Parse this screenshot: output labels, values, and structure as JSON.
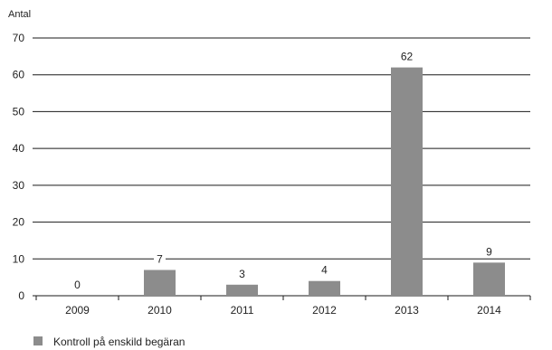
{
  "chart_data": {
    "type": "bar",
    "title": "",
    "xlabel": "",
    "ylabel": "Antal",
    "categories": [
      "2009",
      "2010",
      "2011",
      "2012",
      "2013",
      "2014"
    ],
    "series": [
      {
        "name": "Kontroll på enskild begäran",
        "values": [
          0,
          7,
          3,
          4,
          62,
          9
        ]
      }
    ],
    "data_labels": [
      "0",
      "7",
      "3",
      "4",
      "62",
      "9"
    ],
    "ylim": [
      0,
      70
    ],
    "yticks": [
      0,
      10,
      20,
      30,
      40,
      50,
      60,
      70
    ],
    "grid": true,
    "legend_position": "bottom-left",
    "colors": {
      "bar": "#8c8c8c",
      "grid": "#1a1a1a",
      "axis": "#1a1a1a",
      "text": "#222222"
    }
  }
}
